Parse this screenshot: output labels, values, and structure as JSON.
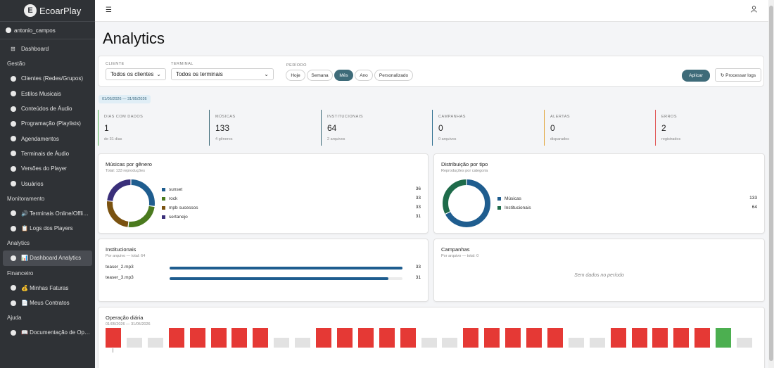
{
  "app": {
    "name": "EcoarPlay",
    "logo_letter": "E"
  },
  "user": {
    "name": "antonio_campos"
  },
  "sidebar": {
    "dashboard": "Dashboard",
    "sections": [
      {
        "label": "Gestão",
        "items": [
          "Clientes (Redes/Grupos)",
          "Estilos Musicais",
          "Conteúdos de Áudio",
          "Programação (Playlists)",
          "Agendamentos",
          "Terminais de Áudio",
          "Versões do Player",
          "Usuários"
        ]
      },
      {
        "label": "Monitoramento",
        "items": [
          "🔊 Terminais Online/Offli…",
          "📋 Logs dos Players"
        ]
      },
      {
        "label": "Analytics",
        "items": [
          "📊 Dashboard Analytics"
        ]
      },
      {
        "label": "Financeiro",
        "items": [
          "💰 Minhas Faturas",
          "📄 Meus Contratos"
        ]
      },
      {
        "label": "Ajuda",
        "items": [
          "📖 Documentação de Op…"
        ]
      }
    ]
  },
  "page": {
    "title": "Analytics"
  },
  "filters": {
    "client_label": "CLIENTE",
    "client_value": "Todos os clientes",
    "terminal_label": "TERMINAL",
    "terminal_value": "Todos os terminais",
    "period_label": "PERÍODO",
    "periods": [
      "Hoje",
      "Semana",
      "Mês",
      "Ano",
      "Personalizado"
    ],
    "active_period": "Mês",
    "apply_label": "Aplicar",
    "process_label": "↻ Processar logs"
  },
  "date_range": "01/05/2026 — 31/05/2026",
  "stats": [
    {
      "label": "DIAS COM DADOS",
      "value": "1",
      "sub": "de 31 dias",
      "color": "#4caf50"
    },
    {
      "label": "MÚSICAS",
      "value": "133",
      "sub": "4 gêneros",
      "color": "#3e6b79"
    },
    {
      "label": "INSTITUCIONAIS",
      "value": "64",
      "sub": "2 arquivos",
      "color": "#3e6b79"
    },
    {
      "label": "CAMPANHAS",
      "value": "0",
      "sub": "0 arquivos",
      "color": "#2c6e8f"
    },
    {
      "label": "ALERTAS",
      "value": "0",
      "sub": "disparados",
      "color": "#e0a030"
    },
    {
      "label": "ERROS",
      "value": "2",
      "sub": "registrados",
      "color": "#e05050"
    }
  ],
  "genre_card": {
    "title": "Músicas por gênero",
    "subtitle": "Total: 133 reproduções",
    "items": [
      {
        "name": "sunset",
        "value": 36,
        "color": "#1f5d8f"
      },
      {
        "name": "rock",
        "value": 33,
        "color": "#4a7a1e"
      },
      {
        "name": "mpb sucessos",
        "value": 33,
        "color": "#7a5210"
      },
      {
        "name": "sertanejo",
        "value": 31,
        "color": "#3a2f7a"
      }
    ]
  },
  "type_card": {
    "title": "Distribuição por tipo",
    "subtitle": "Reproduções por categoria",
    "items": [
      {
        "name": "Músicas",
        "value": 133,
        "color": "#1f5d8f"
      },
      {
        "name": "Institucionais",
        "value": 64,
        "color": "#1e6b4a"
      }
    ]
  },
  "institutional_card": {
    "title": "Institucionais",
    "subtitle": "Por arquivo — total: 64",
    "items": [
      {
        "name": "teaser_2.mp3",
        "value": 33,
        "fraction": 1.0
      },
      {
        "name": "teaser_3.mp3",
        "value": 31,
        "fraction": 0.94
      }
    ]
  },
  "campaign_card": {
    "title": "Campanhas",
    "subtitle": "Por arquivo — total: 0",
    "empty": "Sem dados no período"
  },
  "daily_card": {
    "title": "Operação diária",
    "subtitle": "01/05/2026 — 31/05/2026",
    "days": [
      "error",
      "none",
      "none",
      "error",
      "error",
      "error",
      "error",
      "error",
      "none",
      "none",
      "error",
      "error",
      "error",
      "error",
      "error",
      "none",
      "none",
      "error",
      "error",
      "error",
      "error",
      "error",
      "none",
      "none",
      "error",
      "error",
      "error",
      "error",
      "error",
      "ok",
      "none"
    ],
    "colors": {
      "error": "#e53935",
      "none": "#e2e2e2",
      "ok": "#4caf50"
    }
  }
}
